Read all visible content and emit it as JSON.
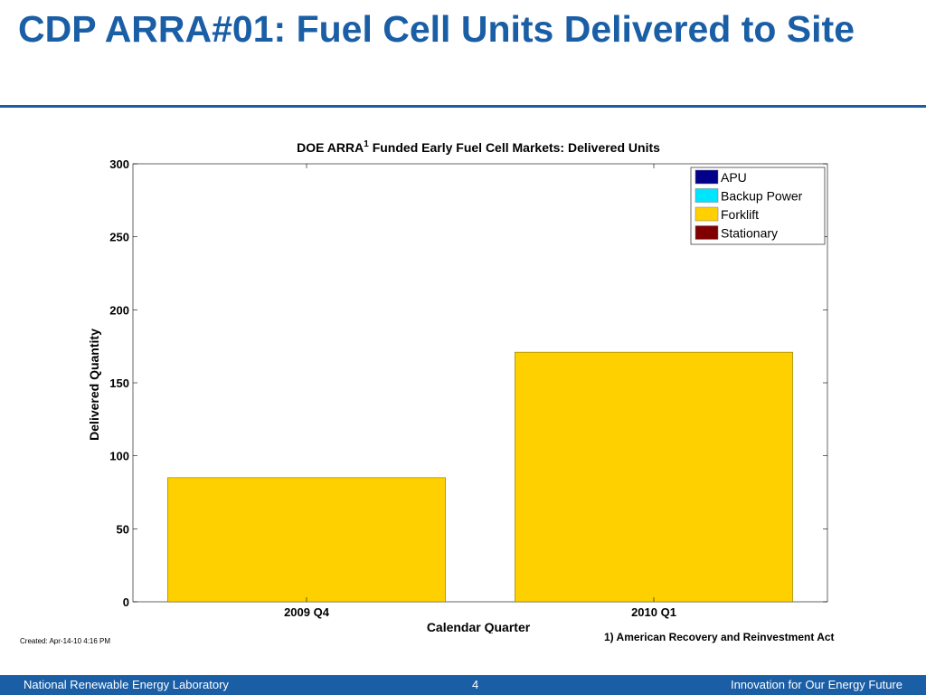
{
  "slide": {
    "title": "CDP ARRA#01: Fuel Cell Units Delivered to Site",
    "created_text": "Created: Apr-14-10  4:16 PM",
    "footnote": "1) American Recovery and Reinvestment Act"
  },
  "footer": {
    "left": "National Renewable Energy Laboratory",
    "page_number": "4",
    "right": "Innovation for Our Energy Future"
  },
  "colors": {
    "brand_blue": "#1a5ea6",
    "apu": "#00008b",
    "backup_power": "#00e5ff",
    "forklift": "#ffd000",
    "stationary": "#800000"
  },
  "chart_data": {
    "type": "bar",
    "stacked": true,
    "title": "DOE ARRA",
    "title_superscript": "1",
    "title_suffix": " Funded Early Fuel Cell Markets:  Delivered Units",
    "xlabel": "Calendar Quarter",
    "ylabel": "Delivered Quantity",
    "categories": [
      "2009 Q4",
      "2010 Q1"
    ],
    "ylim": [
      0,
      300
    ],
    "yticks": [
      0,
      50,
      100,
      150,
      200,
      250,
      300
    ],
    "legend_position": "top-right",
    "grid": false,
    "series": [
      {
        "name": "APU",
        "color": "#00008b",
        "values": [
          0,
          0
        ]
      },
      {
        "name": "Backup Power",
        "color": "#00e5ff",
        "values": [
          0,
          0
        ]
      },
      {
        "name": "Forklift",
        "color": "#ffd000",
        "values": [
          85,
          171
        ]
      },
      {
        "name": "Stationary",
        "color": "#800000",
        "values": [
          0,
          0
        ]
      }
    ]
  }
}
